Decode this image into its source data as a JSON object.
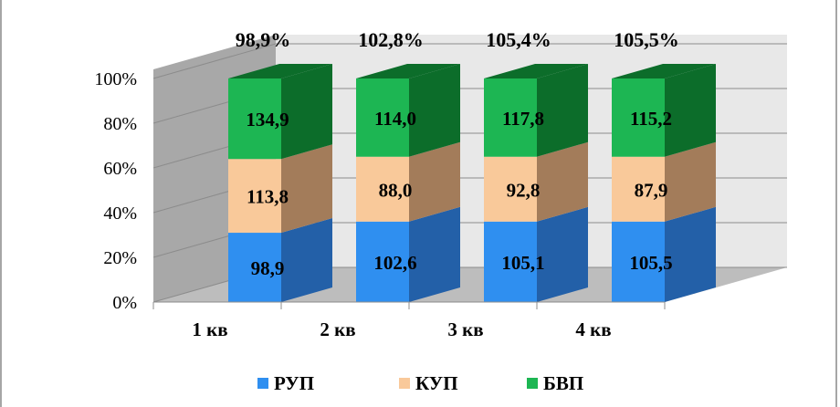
{
  "chart_data": {
    "type": "bar",
    "stacked": true,
    "normalized": true,
    "categories": [
      "1 кв",
      "2 кв",
      "3 кв",
      "4 кв"
    ],
    "totals": [
      "98,9%",
      "102,8%",
      "105,4%",
      "105,5%"
    ],
    "y_ticks": [
      "0%",
      "20%",
      "40%",
      "60%",
      "80%",
      "100%"
    ],
    "ylim": [
      0,
      100
    ],
    "legend_position": "bottom",
    "series": [
      {
        "name": "РУП",
        "shares": [
          31,
          36,
          36,
          36
        ],
        "labels": [
          "98,9",
          "102,6",
          "105,1",
          "105,5"
        ],
        "front": "#2f8ff0",
        "side": "#2360a8"
      },
      {
        "name": "КУП",
        "shares": [
          33,
          29,
          29,
          29
        ],
        "labels": [
          "113,8",
          "88,0",
          "92,8",
          "87,9"
        ],
        "front": "#f9c99a",
        "side": "#a37c5a"
      },
      {
        "name": "БВП",
        "shares": [
          36,
          35,
          35,
          35
        ],
        "labels": [
          "134,9",
          "114,0",
          "117,8",
          "115,2"
        ],
        "front": "#1db653",
        "side": "#0c6d2a"
      }
    ]
  }
}
